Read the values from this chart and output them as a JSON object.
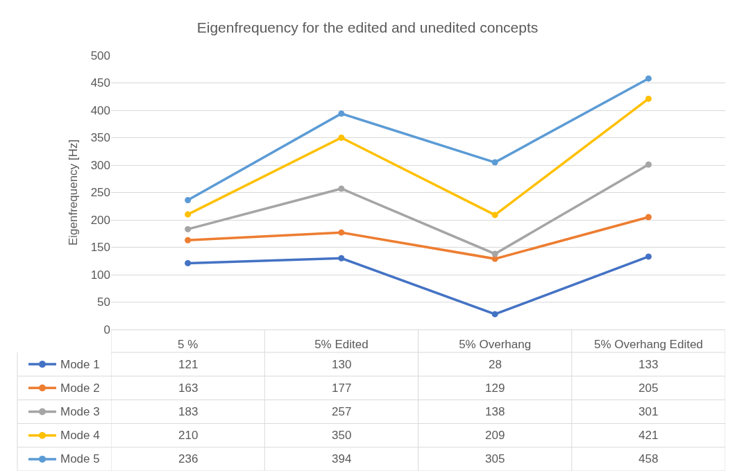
{
  "chart_data": {
    "type": "line",
    "title": "Eigenfrequency for the edited and unedited concepts",
    "ylabel": "Eigenfrequency [Hz]",
    "categories": [
      "5 %",
      "5% Edited",
      "5% Overhang",
      "5% Overhang Edited"
    ],
    "series": [
      {
        "name": "Mode 1",
        "color": "#4472c4",
        "values": [
          121,
          130,
          28,
          133
        ]
      },
      {
        "name": "Mode 2",
        "color": "#ed7d31",
        "values": [
          163,
          177,
          129,
          205
        ]
      },
      {
        "name": "Mode 3",
        "color": "#a5a5a5",
        "values": [
          183,
          257,
          138,
          301
        ]
      },
      {
        "name": "Mode 4",
        "color": "#ffc000",
        "values": [
          210,
          350,
          209,
          421
        ]
      },
      {
        "name": "Mode 5",
        "color": "#5b9bd5",
        "values": [
          236,
          394,
          305,
          458
        ]
      }
    ],
    "ylim": [
      0,
      500
    ],
    "yticks": [
      0,
      50,
      100,
      150,
      200,
      250,
      300,
      350,
      400,
      450,
      500
    ],
    "grid": "y",
    "legend": "bottom",
    "marker": "circle",
    "line_style": "solid",
    "data_labels": true
  }
}
